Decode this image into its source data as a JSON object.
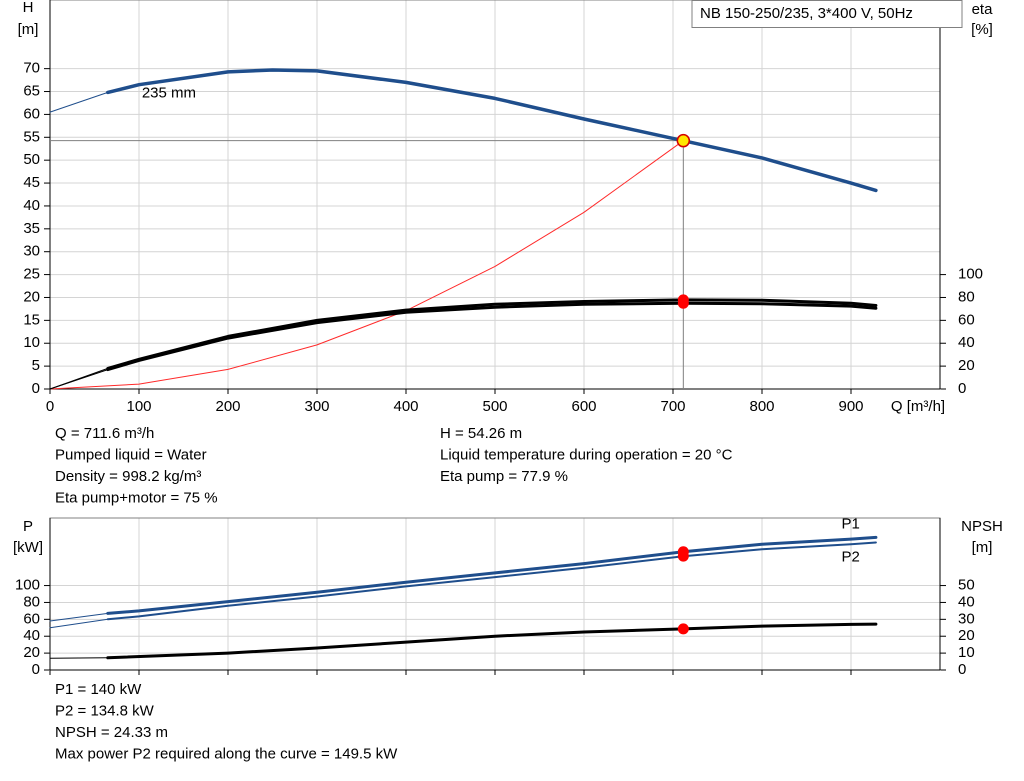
{
  "chart_data": [
    {
      "type": "line",
      "title": "NB 150-250/235, 3*400 V, 50Hz",
      "ylabel": [
        "H",
        "[m]"
      ],
      "y2label": [
        "eta",
        "[%]"
      ],
      "xlabel": "Q [m³/h]",
      "xlim": [
        0,
        1000
      ],
      "xticks": [
        0,
        100,
        200,
        300,
        400,
        500,
        600,
        700,
        800,
        900
      ],
      "ylim": [
        0,
        85
      ],
      "yticks": [
        0,
        5,
        10,
        15,
        20,
        25,
        30,
        35,
        40,
        45,
        50,
        55,
        60,
        65,
        70
      ],
      "y2lim": [
        0,
        340
      ],
      "y2ticks": [
        0,
        20,
        40,
        60,
        80,
        100
      ],
      "grid": true,
      "series": [
        {
          "color": "#1f4e8c",
          "width": 1,
          "axis": "y",
          "x": [
            0,
            65
          ],
          "values": [
            60.5,
            64.8
          ]
        },
        {
          "name": "235 mm",
          "color": "#1f4e8c",
          "width": 3.5,
          "axis": "y",
          "x": [
            65,
            100,
            200,
            250,
            300,
            400,
            500,
            600,
            711.6,
            800,
            900,
            928
          ],
          "values": [
            64.8,
            66.5,
            69.3,
            69.7,
            69.5,
            67,
            63.5,
            59,
            54.26,
            50.5,
            45,
            43.4
          ]
        },
        {
          "color": "#ff2a2a",
          "width": 1,
          "axis": "y",
          "x": [
            0,
            100,
            200,
            300,
            400,
            500,
            600,
            711.6
          ],
          "values": [
            0,
            1.07,
            4.29,
            9.64,
            17.1,
            26.8,
            38.6,
            54.26
          ]
        },
        {
          "color": "#000000",
          "width": 1,
          "axis": "y2",
          "x": [
            0,
            65
          ],
          "values": [
            0,
            18
          ]
        },
        {
          "color": "#000000",
          "width": 1,
          "axis": "y2",
          "x": [
            0,
            65
          ],
          "values": [
            0,
            17
          ]
        },
        {
          "color": "#000000",
          "width": 3,
          "axis": "y2",
          "x": [
            65,
            100,
            200,
            300,
            400,
            500,
            600,
            711.6,
            800,
            900,
            928
          ],
          "values": [
            18,
            26,
            46,
            60,
            69,
            74,
            76.5,
            77.9,
            77.5,
            75,
            73
          ]
        },
        {
          "color": "#000000",
          "width": 3,
          "axis": "y2",
          "x": [
            65,
            100,
            200,
            300,
            400,
            500,
            600,
            711.6,
            800,
            900,
            928
          ],
          "values": [
            17,
            25,
            44.5,
            58,
            67,
            71.5,
            74,
            75,
            74.5,
            72.5,
            70.5
          ]
        }
      ],
      "guide": {
        "x": 711.6,
        "value": 54.26
      },
      "markers": [
        {
          "x": 711.6,
          "value": 77.9,
          "axis": "y2",
          "color": "#ff0000"
        },
        {
          "x": 711.6,
          "value": 75,
          "axis": "y2",
          "color": "#ff0000"
        },
        {
          "x": 711.6,
          "value": 54.26,
          "axis": "y",
          "color": "#ffe600"
        }
      ],
      "info_left": [
        "Q = 711.6 m³/h",
        "Pumped liquid = Water",
        "Density = 998.2 kg/m³",
        "Eta pump+motor = 75 %"
      ],
      "info_right": [
        "H = 54.26 m",
        "Liquid temperature during operation = 20 °C",
        "Eta pump = 77.9 %"
      ]
    },
    {
      "type": "line",
      "ylabel": [
        "P",
        "[kW]"
      ],
      "y2label": [
        "NPSH",
        "[m]"
      ],
      "xlim": [
        0,
        1000
      ],
      "xticks": [
        0,
        100,
        200,
        300,
        400,
        500,
        600,
        700,
        800,
        900
      ],
      "ylim": [
        0,
        180
      ],
      "yticks": [
        0,
        20,
        40,
        60,
        80,
        100
      ],
      "y2lim": [
        0,
        90
      ],
      "y2ticks": [
        0,
        10,
        20,
        30,
        40,
        50
      ],
      "grid": true,
      "series": [
        {
          "color": "#1f4e8c",
          "width": 1,
          "axis": "y",
          "x": [
            0,
            65
          ],
          "values": [
            58,
            67
          ]
        },
        {
          "name": "P1",
          "color": "#1f4e8c",
          "width": 3,
          "axis": "y",
          "x": [
            65,
            100,
            200,
            300,
            400,
            500,
            600,
            711.6,
            800,
            900,
            928
          ],
          "values": [
            67,
            70,
            81,
            92,
            104,
            115,
            126,
            140,
            149,
            155,
            157
          ]
        },
        {
          "color": "#1f4e8c",
          "width": 1,
          "axis": "y",
          "x": [
            0,
            65
          ],
          "values": [
            50,
            60
          ]
        },
        {
          "name": "P2",
          "color": "#1f4e8c",
          "width": 2,
          "axis": "y",
          "x": [
            65,
            100,
            200,
            300,
            400,
            500,
            600,
            711.6,
            800,
            900,
            928
          ],
          "values": [
            60,
            63.5,
            76,
            87,
            99,
            110,
            121,
            134.8,
            143,
            149,
            151
          ]
        },
        {
          "color": "#000000",
          "width": 1,
          "axis": "y2",
          "x": [
            0,
            65
          ],
          "values": [
            7,
            7.2
          ]
        },
        {
          "color": "#000000",
          "width": 3,
          "axis": "y2",
          "x": [
            65,
            200,
            300,
            400,
            500,
            600,
            711.6,
            800,
            900,
            928
          ],
          "values": [
            7.2,
            10,
            13,
            16.5,
            20,
            22.5,
            24.33,
            26,
            27,
            27.2
          ]
        }
      ],
      "markers": [
        {
          "x": 711.6,
          "value": 140,
          "axis": "y",
          "color": "#ff0000"
        },
        {
          "x": 711.6,
          "value": 134.8,
          "axis": "y",
          "color": "#ff0000"
        },
        {
          "x": 711.6,
          "value": 24.33,
          "axis": "y2",
          "color": "#ff0000"
        }
      ],
      "info_left": [
        "P1 = 140 kW",
        "P2 = 134.8 kW",
        "NPSH = 24.33 m",
        "Max power P2 required along the curve = 149.5 kW"
      ]
    }
  ]
}
